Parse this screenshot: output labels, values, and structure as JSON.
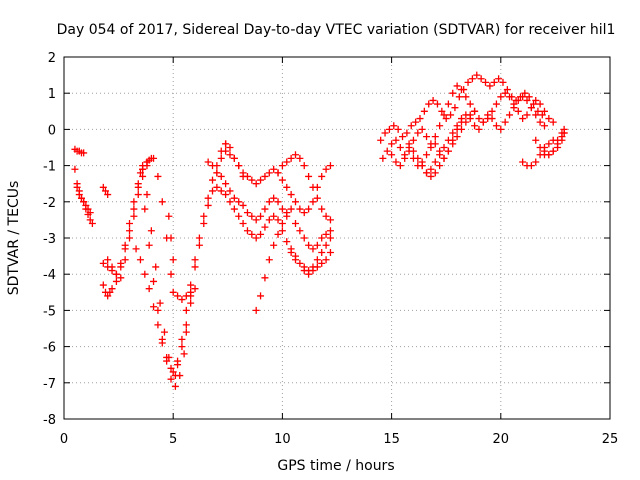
{
  "chart_data": {
    "type": "scatter",
    "title": "Day 054 of 2017, Sidereal Day-to-day VTEC variation (SDTVAR) for receiver hil1",
    "xlabel": "GPS time / hours",
    "ylabel": "SDTVAR / TECUs",
    "xlim": [
      0,
      25
    ],
    "ylim": [
      -8,
      2
    ],
    "xticks": [
      "0",
      "5",
      "10",
      "15",
      "20",
      "25"
    ],
    "yticks": [
      "-8",
      "-7",
      "-6",
      "-5",
      "-4",
      "-3",
      "-2",
      "-1",
      "0",
      "1",
      "2"
    ],
    "grid": true,
    "marker": "plus",
    "color": "#ff0000",
    "series": [
      {
        "x": [
          0.5,
          0.6,
          0.7,
          0.8,
          0.9
        ],
        "y": [
          -0.55,
          -0.6,
          -0.6,
          -0.65,
          -0.65
        ]
      },
      {
        "x": [
          0.5,
          0.6,
          0.7,
          0.8,
          0.9,
          1.0,
          1.1,
          1.2,
          1.3
        ],
        "y": [
          -1.1,
          -1.5,
          -1.7,
          -1.9,
          -2.0,
          -2.2,
          -2.35,
          -2.5,
          -2.6
        ]
      },
      {
        "x": [
          0.6,
          0.7,
          0.8,
          0.9,
          1.0,
          1.1,
          1.2
        ],
        "y": [
          -1.6,
          -1.8,
          -1.9,
          -2.0,
          -2.1,
          -2.2,
          -2.3
        ]
      },
      {
        "x": [
          1.8,
          1.9,
          2.0
        ],
        "y": [
          -1.6,
          -1.7,
          -1.8
        ]
      },
      {
        "x": [
          1.8,
          1.9,
          2.0,
          2.1,
          2.2
        ],
        "y": [
          -4.3,
          -4.5,
          -4.6,
          -4.5,
          -4.4
        ]
      },
      {
        "x": [
          1.8,
          2.0,
          2.2,
          2.4,
          2.6,
          2.8,
          3.0,
          3.2,
          3.4,
          3.6,
          3.8,
          3.9
        ],
        "y": [
          -3.7,
          -3.8,
          -3.9,
          -4.0,
          -3.8,
          -3.3,
          -2.8,
          -2.2,
          -1.6,
          -1.1,
          -0.9,
          -0.85
        ]
      },
      {
        "x": [
          2.0,
          2.2,
          2.4,
          2.6,
          2.8,
          3.0,
          3.2,
          3.4,
          3.6,
          3.8
        ],
        "y": [
          -3.6,
          -3.8,
          -4.2,
          -4.1,
          -3.6,
          -3.0,
          -2.4,
          -1.8,
          -1.3,
          -1.0
        ]
      },
      {
        "x": [
          2.4,
          2.6,
          2.8,
          3.0,
          3.2,
          3.4,
          3.6,
          3.8,
          4.0
        ],
        "y": [
          -4.0,
          -3.7,
          -3.2,
          -2.6,
          -2.0,
          -1.5,
          -1.1,
          -0.9,
          -0.8
        ]
      },
      {
        "x": [
          3.6,
          3.8,
          4.0,
          4.2,
          4.4,
          4.6,
          4.8,
          5.0,
          5.2,
          5.4,
          5.6,
          5.8
        ],
        "y": [
          -1.0,
          -1.8,
          -2.8,
          -3.8,
          -4.8,
          -5.6,
          -6.3,
          -6.7,
          -6.5,
          -6.0,
          -5.4,
          -4.8
        ]
      },
      {
        "x": [
          3.5,
          3.7,
          3.9,
          4.1,
          4.3,
          4.5,
          4.7,
          4.9,
          5.1,
          5.3,
          5.5
        ],
        "y": [
          -1.2,
          -2.2,
          -3.2,
          -4.2,
          -5.0,
          -5.8,
          -6.4,
          -6.9,
          -7.1,
          -6.8,
          -6.2
        ]
      },
      {
        "x": [
          3.3,
          3.5,
          3.7,
          3.9,
          4.1,
          4.3,
          4.5,
          4.7,
          4.9,
          5.1
        ],
        "y": [
          -3.3,
          -3.6,
          -4.0,
          -4.4,
          -4.9,
          -5.4,
          -5.9,
          -6.3,
          -6.6,
          -6.8
        ]
      },
      {
        "x": [
          4.1,
          4.3,
          4.5,
          4.7,
          4.9
        ],
        "y": [
          -0.8,
          -1.3,
          -2.0,
          -3.0,
          -4.0
        ]
      },
      {
        "x": [
          4.8,
          4.9,
          5.0
        ],
        "y": [
          -2.4,
          -3.0,
          -3.6
        ]
      },
      {
        "x": [
          5.0,
          5.2,
          5.4,
          5.6,
          5.8,
          6.0
        ],
        "y": [
          -4.5,
          -4.6,
          -4.7,
          -4.6,
          -4.5,
          -4.4
        ]
      },
      {
        "x": [
          5.2,
          5.4,
          5.6,
          5.8,
          6.0,
          6.2,
          6.4,
          6.6,
          6.8,
          7.0,
          7.2,
          7.4,
          7.6,
          7.8,
          8.0,
          8.2
        ],
        "y": [
          -6.4,
          -5.8,
          -5.0,
          -4.3,
          -3.6,
          -3.0,
          -2.4,
          -1.9,
          -1.4,
          -1.0,
          -0.6,
          -0.4,
          -0.5,
          -0.8,
          -1.0,
          -1.3
        ]
      },
      {
        "x": [
          5.6,
          5.8,
          6.0,
          6.2,
          6.4,
          6.6,
          6.8,
          7.0,
          7.2,
          7.4
        ],
        "y": [
          -5.6,
          -4.6,
          -3.8,
          -3.2,
          -2.6,
          -2.1,
          -1.7,
          -1.2,
          -0.8,
          -0.4
        ]
      },
      {
        "x": [
          6.6,
          6.8,
          7.0,
          7.2,
          7.4,
          7.6,
          7.8,
          8.0,
          8.2,
          8.4,
          8.6,
          8.8,
          9.0,
          9.2,
          9.4,
          9.6,
          9.8,
          10.0,
          10.2
        ],
        "y": [
          -0.9,
          -1.0,
          -1.2,
          -1.3,
          -1.5,
          -1.7,
          -1.9,
          -2.0,
          -2.1,
          -2.3,
          -2.4,
          -2.5,
          -2.4,
          -2.2,
          -2.0,
          -1.9,
          -2.0,
          -2.2,
          -2.3
        ]
      },
      {
        "x": [
          7.0,
          7.2,
          7.4,
          7.6,
          7.8,
          8.0,
          8.2,
          8.4,
          8.6,
          8.8,
          9.0,
          9.2,
          9.4,
          9.6,
          9.8,
          10.0,
          10.2,
          10.4,
          10.6
        ],
        "y": [
          -1.6,
          -1.7,
          -1.8,
          -2.0,
          -2.2,
          -2.4,
          -2.6,
          -2.8,
          -2.9,
          -3.0,
          -2.9,
          -2.7,
          -2.5,
          -2.4,
          -2.5,
          -2.8,
          -3.1,
          -3.3,
          -3.5
        ]
      },
      {
        "x": [
          7.4,
          7.6,
          7.8,
          8.0,
          8.2,
          8.4,
          8.6,
          8.8,
          9.0,
          9.2,
          9.4,
          9.6,
          9.8,
          10.0,
          10.2,
          10.4,
          10.6,
          10.8,
          11.0,
          11.2,
          11.4,
          11.6,
          11.8,
          12.0,
          12.2
        ],
        "y": [
          -0.6,
          -0.7,
          -0.8,
          -1.0,
          -1.2,
          -1.3,
          -1.4,
          -1.5,
          -1.4,
          -1.3,
          -1.2,
          -1.1,
          -1.2,
          -1.4,
          -1.6,
          -1.8,
          -2.0,
          -2.2,
          -2.3,
          -2.2,
          -2.0,
          -1.6,
          -1.3,
          -1.1,
          -1.0
        ]
      },
      {
        "x": [
          8.8,
          9.0,
          9.2,
          9.4,
          9.6,
          9.8,
          10.0,
          10.2,
          10.4
        ],
        "y": [
          -5.0,
          -4.6,
          -4.1,
          -3.6,
          -3.2,
          -2.9,
          -2.6,
          -2.4,
          -2.2
        ]
      },
      {
        "x": [
          9.8,
          10.0,
          10.2,
          10.4,
          10.6,
          10.8,
          11.0,
          11.2,
          11.4,
          11.6,
          11.8,
          12.0,
          12.2
        ],
        "y": [
          -1.2,
          -1.0,
          -0.9,
          -0.8,
          -0.7,
          -0.8,
          -1.0,
          -1.3,
          -1.6,
          -1.9,
          -2.2,
          -2.4,
          -2.5
        ]
      },
      {
        "x": [
          10.4,
          10.6,
          10.8,
          11.0,
          11.2,
          11.4,
          11.6,
          11.8,
          12.0,
          12.2
        ],
        "y": [
          -3.4,
          -3.6,
          -3.7,
          -3.8,
          -3.9,
          -3.8,
          -3.6,
          -3.4,
          -3.2,
          -3.0
        ]
      },
      {
        "x": [
          10.6,
          10.8,
          11.0,
          11.2,
          11.4,
          11.6,
          11.8,
          12.0,
          12.2
        ],
        "y": [
          -2.6,
          -2.8,
          -3.0,
          -3.2,
          -3.3,
          -3.2,
          -3.0,
          -2.9,
          -2.8
        ]
      },
      {
        "x": [
          11.0,
          11.2,
          11.4,
          11.6,
          11.8,
          12.0,
          12.2
        ],
        "y": [
          -3.9,
          -4.0,
          -3.9,
          -3.8,
          -3.7,
          -3.6,
          -3.4
        ]
      },
      {
        "x": [
          14.5,
          14.7,
          14.9,
          15.1,
          15.3,
          15.5,
          15.7,
          15.9,
          16.1,
          16.3,
          16.5,
          16.7,
          16.9,
          17.1,
          17.3,
          17.5,
          17.7,
          17.9,
          18.1,
          18.3,
          18.5,
          18.7,
          18.9,
          19.1,
          19.3,
          19.5,
          19.7,
          19.9,
          20.1,
          20.3,
          20.5,
          20.7,
          20.9,
          21.1,
          21.3,
          21.5,
          21.7,
          21.9
        ],
        "y": [
          -0.3,
          -0.1,
          0.0,
          0.1,
          0.0,
          -0.2,
          -0.1,
          0.1,
          0.2,
          0.3,
          0.5,
          0.7,
          0.8,
          0.7,
          0.5,
          0.3,
          0.4,
          0.6,
          0.9,
          1.1,
          1.3,
          1.4,
          1.5,
          1.4,
          1.3,
          1.2,
          1.3,
          1.4,
          1.3,
          1.1,
          0.9,
          0.8,
          0.9,
          1.0,
          0.9,
          0.7,
          0.5,
          0.4
        ]
      },
      {
        "x": [
          14.6,
          14.8,
          15.0,
          15.2,
          15.4,
          15.6,
          15.8,
          16.0,
          16.2,
          16.4,
          16.6,
          16.8,
          17.0,
          17.2,
          17.4,
          17.6,
          17.8,
          18.0,
          18.2,
          18.4,
          18.6,
          18.8,
          19.0,
          19.2,
          19.4,
          19.6,
          19.8,
          20.0,
          20.2,
          20.4,
          20.6,
          20.8,
          21.0,
          21.2,
          21.4,
          21.6,
          21.8,
          22.0,
          22.2,
          22.4
        ],
        "y": [
          -0.8,
          -0.6,
          -0.4,
          -0.3,
          -0.5,
          -0.7,
          -0.5,
          -0.3,
          -0.1,
          0.0,
          -0.2,
          -0.4,
          -0.2,
          0.1,
          0.4,
          0.7,
          1.0,
          1.2,
          1.1,
          0.9,
          0.7,
          0.5,
          0.3,
          0.2,
          0.3,
          0.5,
          0.7,
          0.9,
          1.0,
          0.9,
          0.7,
          0.5,
          0.3,
          0.4,
          0.6,
          0.8,
          0.7,
          0.5,
          0.3,
          0.2
        ]
      },
      {
        "x": [
          15.0,
          15.2,
          15.4,
          15.6,
          15.8,
          16.0,
          16.2,
          16.4,
          16.6,
          16.8,
          17.0,
          17.2,
          17.4,
          17.6,
          17.8,
          18.0,
          18.2,
          18.4,
          18.6,
          18.8,
          19.0,
          19.2,
          19.4,
          19.6,
          19.8,
          20.0,
          20.2,
          20.4,
          20.6,
          20.8,
          21.0,
          21.2,
          21.4,
          21.6,
          21.8,
          22.0
        ],
        "y": [
          -0.7,
          -0.9,
          -1.0,
          -0.8,
          -0.6,
          -0.8,
          -1.0,
          -0.9,
          -0.7,
          -0.5,
          -0.4,
          -0.6,
          -0.8,
          -0.6,
          -0.3,
          0.0,
          0.2,
          0.4,
          0.3,
          0.1,
          0.0,
          0.2,
          0.4,
          0.3,
          0.1,
          0.0,
          0.2,
          0.4,
          0.6,
          0.8,
          0.9,
          0.8,
          0.6,
          0.4,
          0.2,
          0.1
        ]
      },
      {
        "x": [
          15.8,
          16.0,
          16.2,
          16.4,
          16.6,
          16.8,
          17.0,
          17.2,
          17.4,
          17.6,
          17.8,
          18.0,
          18.2,
          18.4,
          18.6,
          18.8
        ],
        "y": [
          -0.4,
          -0.6,
          -0.8,
          -1.0,
          -1.2,
          -1.3,
          -1.2,
          -1.0,
          -0.8,
          -0.6,
          -0.4,
          -0.2,
          0.0,
          0.2,
          0.4,
          0.5
        ]
      },
      {
        "x": [
          16.4,
          16.6,
          16.8,
          17.0,
          17.2,
          17.4,
          17.6,
          17.8,
          18.0,
          18.2
        ],
        "y": [
          -1.0,
          -1.2,
          -1.1,
          -0.9,
          -0.7,
          -0.5,
          -0.3,
          -0.1,
          0.1,
          0.3
        ]
      },
      {
        "x": [
          21.0,
          21.2,
          21.4,
          21.6,
          21.8,
          22.0,
          22.2,
          22.4,
          22.6,
          22.8,
          22.9
        ],
        "y": [
          -0.9,
          -1.0,
          -1.0,
          -0.9,
          -0.7,
          -0.5,
          -0.4,
          -0.3,
          -0.3,
          -0.2,
          -0.1
        ]
      },
      {
        "x": [
          21.6,
          21.8,
          22.0,
          22.2,
          22.4,
          22.6,
          22.8,
          22.9
        ],
        "y": [
          -0.3,
          -0.5,
          -0.6,
          -0.7,
          -0.6,
          -0.5,
          -0.3,
          -0.1
        ]
      },
      {
        "x": [
          22.0,
          22.2,
          22.4,
          22.6,
          22.8,
          22.9
        ],
        "y": [
          -0.7,
          -0.7,
          -0.6,
          -0.4,
          -0.1,
          0.0
        ]
      }
    ]
  }
}
